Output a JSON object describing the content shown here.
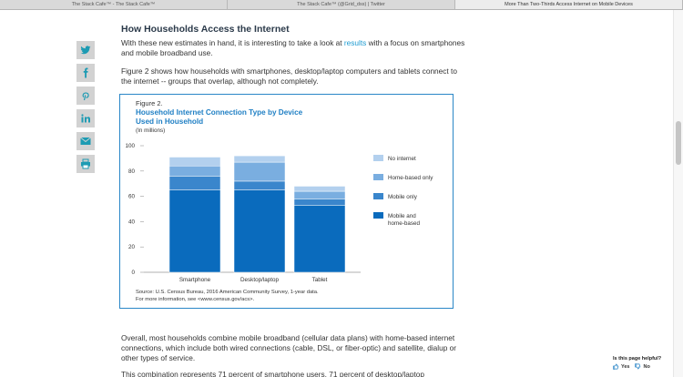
{
  "browser": {
    "tabs": [
      {
        "title": "The Stack Cafe™ - The Stack Cafe™",
        "active": false
      },
      {
        "title": "The Stack Cafe™ (@Grid_dss) | Twitter",
        "active": false
      },
      {
        "title": "More Than Two-Thirds Access Internet on Mobile Devices",
        "active": true
      }
    ]
  },
  "share": {
    "icons": [
      "twitter-icon",
      "facebook-icon",
      "pinterest-icon",
      "linkedin-icon",
      "email-icon",
      "print-icon"
    ],
    "accent": "#1d9bb3"
  },
  "article": {
    "heading": "How Households Access the Internet",
    "p1_before": "With these new estimates in hand, it is interesting to take a look at ",
    "p1_link": "results",
    "p1_after": " with a focus on smartphones and mobile broadband use.",
    "p2": "Figure 2 shows how households with smartphones, desktop/laptop computers and tablets connect to the internet -- groups that overlap, although not completely.",
    "p3": "Overall, most households combine mobile broadband (cellular data plans) with home-based internet connections, which include both wired connections (cable, DSL, or fiber-optic) and satellite, dialup or other types of service.",
    "p4": "This combination represents 71 percent of smartphone users, 71 percent of desktop/laptop"
  },
  "figure": {
    "label": "Figure 2.",
    "title": "Household Internet Connection Type by Device Used in Household",
    "subtitle": "(In millions)",
    "source_line1": "Source: U.S. Census Bureau, 2016 American Community Survey, 1-year data.",
    "source_line2": "For more information, see <www.census.gov/acs>."
  },
  "chart_data": {
    "type": "bar",
    "stacked": true,
    "categories": [
      "Smartphone",
      "Desktop/laptop",
      "Tablet"
    ],
    "series": [
      {
        "name": "Mobile and home-based",
        "color": "#0a6bbd",
        "values": [
          65,
          65,
          53
        ]
      },
      {
        "name": "Mobile only",
        "color": "#3a86cc",
        "values": [
          11,
          7,
          5
        ]
      },
      {
        "name": "Home-based only",
        "color": "#7aaee0",
        "values": [
          8,
          15,
          6
        ]
      },
      {
        "name": "No internet",
        "color": "#b3d0ee",
        "values": [
          7,
          5,
          4
        ]
      }
    ],
    "legend_order": [
      "No internet",
      "Home-based only",
      "Mobile only",
      "Mobile and home-based"
    ],
    "legend_labels": [
      "No internet",
      "Home-based only",
      "Mobile only",
      "Mobile and\nhome-based"
    ],
    "ylim": [
      0,
      100
    ],
    "yticks": [
      0,
      20,
      40,
      60,
      80,
      100
    ],
    "grid": false,
    "legend_position": "right"
  },
  "feedback": {
    "question": "Is this page helpful?",
    "yes": "Yes",
    "no": "No"
  }
}
